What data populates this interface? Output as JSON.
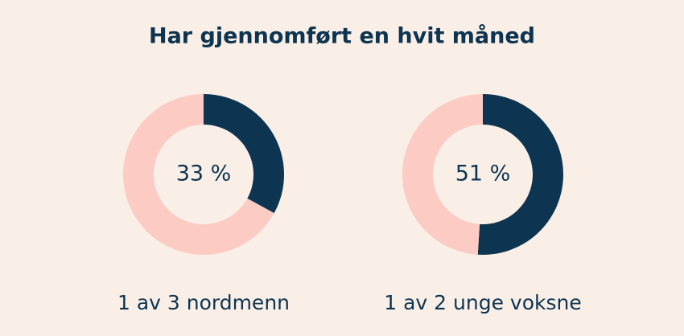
{
  "title": "Har gjennomført en hvit måned",
  "chart_data": [
    {
      "type": "donut",
      "values": [
        33,
        67
      ],
      "value_labels": [
        "33 %",
        null
      ],
      "colors": [
        "#0d3450",
        "#fccbc4"
      ],
      "caption": "1 av 3 nordmenn"
    },
    {
      "type": "donut",
      "values": [
        51,
        49
      ],
      "value_labels": [
        "51 %",
        null
      ],
      "colors": [
        "#0d3450",
        "#fccbc4"
      ],
      "caption": "1 av 2 unge voksne"
    }
  ]
}
